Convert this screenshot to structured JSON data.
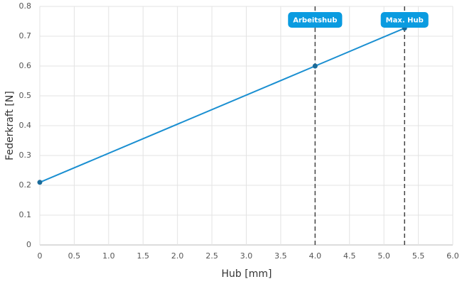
{
  "chart_data": {
    "type": "line",
    "x_label": "Hub [mm]",
    "y_label": "Federkraft [N]",
    "x": [
      0,
      4.0,
      5.3
    ],
    "values": [
      0.21,
      0.6,
      0.727
    ],
    "color": "#1a8fd1",
    "marker_color": "#1b6b9a",
    "xlim": [
      0,
      6
    ],
    "ylim": [
      0,
      0.8
    ],
    "xticks": [
      0,
      0.5,
      {
        "value": 1,
        "label": "1.0"
      },
      1.5,
      {
        "value": 2,
        "label": "2.0"
      },
      2.5,
      {
        "value": 3,
        "label": "3.0"
      },
      3.5,
      {
        "value": 4,
        "label": "4.0"
      },
      4.5,
      {
        "value": 5,
        "label": "5.0"
      },
      5.5,
      {
        "value": 6,
        "label": "6.0"
      }
    ],
    "yticks": [
      0,
      0.1,
      0.2,
      0.3,
      0.4,
      0.5,
      0.6,
      0.7,
      0.8
    ],
    "grid": true,
    "annotations": [
      {
        "x": 4.0,
        "label": "Arbeitshub"
      },
      {
        "x": 5.3,
        "label": "Max. Hub"
      }
    ],
    "annotation_color": "#0a9be0"
  }
}
